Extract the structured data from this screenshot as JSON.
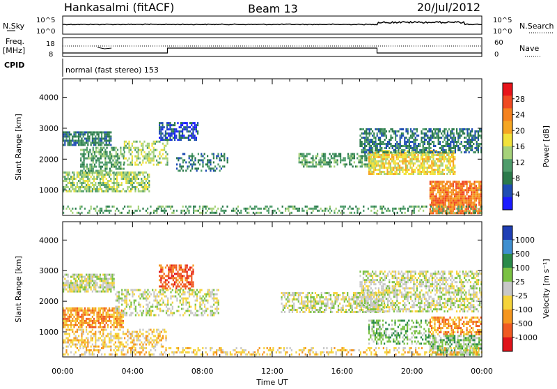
{
  "header": {
    "station": "Hankasalmi (fitACF)",
    "beam": "Beam 13",
    "date": "20/Jul/2012"
  },
  "top_panels": {
    "nsky_label": "N.Sky",
    "nsky_ticks": [
      "10^5",
      "10^0"
    ],
    "nsearch_label": "N.Search",
    "nsearch_ticks": [
      "10^5",
      "10^0"
    ],
    "freq_label": "Freq.",
    "freq_unit": "[MHz]",
    "freq_ticks": [
      "18",
      "8"
    ],
    "nave_label": "Nave",
    "nave_ticks": [
      "60",
      "0"
    ],
    "cpid_label": "CPID",
    "cpid_text": "normal (fast stereo) 153"
  },
  "chart_data": [
    {
      "type": "heatmap",
      "name": "power",
      "ylabel": "Slant Range [km]",
      "x_ticks": [
        "00:00",
        "04:00",
        "08:00",
        "12:00",
        "16:00",
        "20:00",
        "00:00"
      ],
      "y_ticks": [
        1000,
        2000,
        3000,
        4000
      ],
      "ylim": [
        180,
        4600
      ],
      "xlim_hours": [
        0,
        24
      ],
      "colorbar": {
        "label": "Power [dB]",
        "ticks": [
          "28",
          "24",
          "20",
          "16",
          "12",
          "8",
          "4"
        ],
        "colors": [
          "#e8141a",
          "#f04a22",
          "#f5821f",
          "#f5a623",
          "#f2e23b",
          "#a6d27a",
          "#4f9c6b",
          "#2b7a4b",
          "#1f4db3",
          "#1a1aff"
        ]
      },
      "regions": [
        {
          "t0": 0.0,
          "t1": 2.8,
          "r0": 2400,
          "r1": 2900,
          "level": 2,
          "density": 0.8
        },
        {
          "t0": 0.0,
          "t1": 5.0,
          "r0": 900,
          "r1": 1600,
          "level": 4,
          "density": 0.7
        },
        {
          "t0": 1.0,
          "t1": 3.5,
          "r0": 1500,
          "r1": 2400,
          "level": 3,
          "density": 0.6
        },
        {
          "t0": 3.5,
          "t1": 6.0,
          "r0": 1800,
          "r1": 2600,
          "level": 4,
          "density": 0.5
        },
        {
          "t0": 5.5,
          "t1": 7.8,
          "r0": 2600,
          "r1": 3200,
          "level": 1,
          "density": 0.6
        },
        {
          "t0": 6.5,
          "t1": 9.5,
          "r0": 1600,
          "r1": 2200,
          "level": 2,
          "density": 0.4
        },
        {
          "t0": 13.5,
          "t1": 18.0,
          "r0": 1700,
          "r1": 2200,
          "level": 3,
          "density": 0.55
        },
        {
          "t0": 17.5,
          "t1": 22.5,
          "r0": 1500,
          "r1": 2300,
          "level": 5,
          "density": 0.75
        },
        {
          "t0": 17.0,
          "t1": 24.0,
          "r0": 2200,
          "r1": 3000,
          "level": 2,
          "density": 0.6
        },
        {
          "t0": 21.0,
          "t1": 24.0,
          "r0": 250,
          "r1": 1300,
          "level": 7,
          "density": 0.85
        },
        {
          "t0": 0.0,
          "t1": 24.0,
          "r0": 200,
          "r1": 500,
          "level": 3,
          "density": 0.35
        }
      ]
    },
    {
      "type": "heatmap",
      "name": "velocity",
      "ylabel": "Slant Range [km]",
      "x_ticks": [
        "00:00",
        "04:00",
        "08:00",
        "12:00",
        "16:00",
        "20:00",
        "00:00"
      ],
      "xlabel": "Time UT",
      "y_ticks": [
        1000,
        2000,
        3000,
        4000
      ],
      "ylim": [
        180,
        4600
      ],
      "xlim_hours": [
        0,
        24
      ],
      "colorbar": {
        "label": "Velocity [m s⁻¹]",
        "ticks": [
          "1000",
          "500",
          "100",
          "25",
          "-25",
          "-100",
          "-500",
          "-1000"
        ],
        "colors": [
          "#1f3fb5",
          "#3f8fd0",
          "#2a8a4a",
          "#7ac143",
          "#c8c8c8",
          "#f5d33b",
          "#f5961f",
          "#f05a22",
          "#e0141a"
        ]
      },
      "regions": [
        {
          "t0": 0.0,
          "t1": 3.0,
          "r0": 2300,
          "r1": 2900,
          "level": 4,
          "density": 0.75
        },
        {
          "t0": 0.0,
          "t1": 3.5,
          "r0": 1100,
          "r1": 1800,
          "level": 6,
          "density": 0.75
        },
        {
          "t0": 0.0,
          "t1": 6.0,
          "r0": 500,
          "r1": 1100,
          "level": 5,
          "density": 0.5
        },
        {
          "t0": 5.5,
          "t1": 7.5,
          "r0": 2400,
          "r1": 3200,
          "level": 7,
          "density": 0.6
        },
        {
          "t0": 3.0,
          "t1": 9.0,
          "r0": 1500,
          "r1": 2400,
          "level": 4,
          "density": 0.45
        },
        {
          "t0": 12.5,
          "t1": 18.5,
          "r0": 1600,
          "r1": 2300,
          "level": 4,
          "density": 0.6
        },
        {
          "t0": 17.0,
          "t1": 24.0,
          "r0": 1600,
          "r1": 3000,
          "level": 4,
          "density": 0.55
        },
        {
          "t0": 17.5,
          "t1": 21.0,
          "r0": 600,
          "r1": 1400,
          "level": 3,
          "density": 0.4
        },
        {
          "t0": 21.0,
          "t1": 24.0,
          "r0": 900,
          "r1": 1500,
          "level": 6,
          "density": 0.6
        },
        {
          "t0": 21.0,
          "t1": 24.0,
          "r0": 250,
          "r1": 900,
          "level": 3,
          "density": 0.7
        },
        {
          "t0": 0.0,
          "t1": 24.0,
          "r0": 200,
          "r1": 500,
          "level": 5,
          "density": 0.35
        }
      ]
    }
  ]
}
